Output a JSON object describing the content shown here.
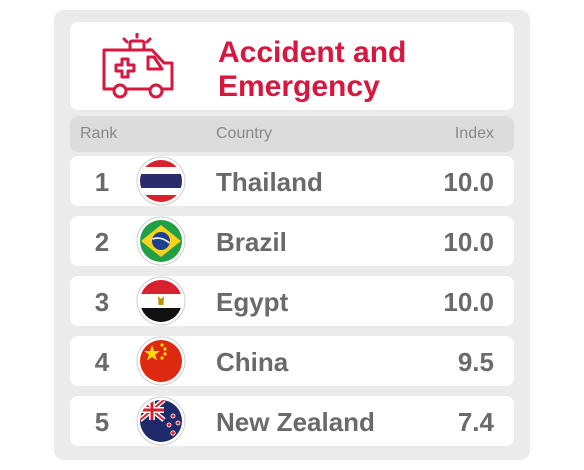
{
  "header": {
    "icon": "ambulance-icon",
    "title": "Accident and Emergency",
    "accent_color": "#d6173f"
  },
  "columns": {
    "rank": "Rank",
    "country": "Country",
    "index": "Index"
  },
  "rows": [
    {
      "rank": "1",
      "country": "Thailand",
      "index": "10.0",
      "flag": "thailand-flag-icon"
    },
    {
      "rank": "2",
      "country": "Brazil",
      "index": "10.0",
      "flag": "brazil-flag-icon"
    },
    {
      "rank": "3",
      "country": "Egypt",
      "index": "10.0",
      "flag": "egypt-flag-icon"
    },
    {
      "rank": "4",
      "country": "China",
      "index": "9.5",
      "flag": "china-flag-icon"
    },
    {
      "rank": "5",
      "country": "New Zealand",
      "index": "7.4",
      "flag": "new-zealand-flag-icon"
    }
  ]
}
